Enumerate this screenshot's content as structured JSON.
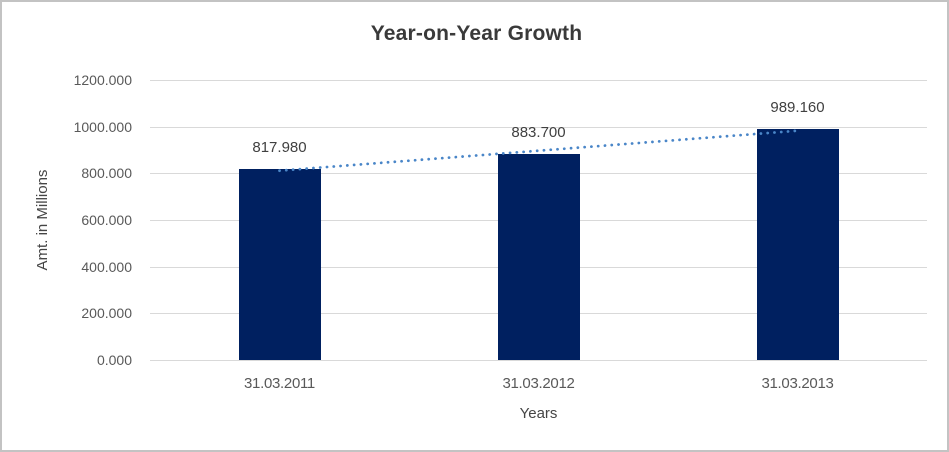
{
  "window": {
    "background": "#ffffff",
    "border_color": "#c3c3c3"
  },
  "chart_data": {
    "type": "bar",
    "title": "Year-on-Year Growth",
    "xlabel": "Years",
    "ylabel": "Amt. in Millions",
    "categories": [
      "31.03.2011",
      "31.03.2012",
      "31.03.2013"
    ],
    "values": [
      817.98,
      883.7,
      989.16
    ],
    "data_labels": [
      "817.980",
      "883.700",
      "989.160"
    ],
    "yticks": [
      "0.000",
      "200.000",
      "400.000",
      "600.000",
      "800.000",
      "1000.000",
      "1200.000"
    ],
    "ylim": [
      0,
      1200
    ],
    "grid": true,
    "legend": false,
    "bar_color": "#002060",
    "gridline_color": "#d9d9d9",
    "trendline": {
      "type": "linear",
      "style": "dotted",
      "color": "#4a86c8"
    }
  }
}
